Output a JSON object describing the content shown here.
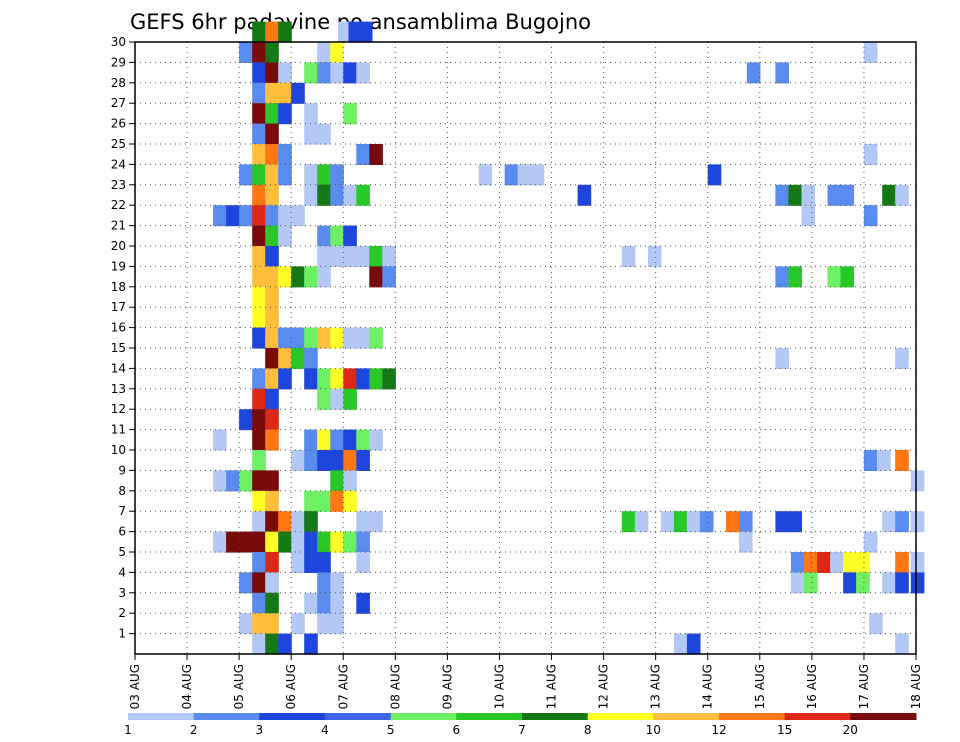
{
  "chart_data": {
    "type": "heatmap",
    "title": "GEFS 6hr padavine po ansamblima Bugojno",
    "xlabel": "",
    "ylabel": "",
    "x_ticks": [
      "03 AUG",
      "04 AUG",
      "05 AUG",
      "06 AUG",
      "07 AUG",
      "08 AUG",
      "09 AUG",
      "10 AUG",
      "11 AUG",
      "12 AUG",
      "13 AUG",
      "14 AUG",
      "15 AUG",
      "16 AUG",
      "17 AUG",
      "18 AUG"
    ],
    "y_ticks": [
      1,
      2,
      3,
      4,
      5,
      6,
      7,
      8,
      9,
      10,
      11,
      12,
      13,
      14,
      15,
      16,
      17,
      18,
      19,
      20,
      21,
      22,
      23,
      24,
      25,
      26,
      27,
      28,
      29,
      30
    ],
    "xlim_days": [
      0,
      15
    ],
    "ylim": [
      0,
      30
    ],
    "grid": "dotted",
    "colorbar": {
      "labels": [
        "1",
        "2",
        "3",
        "4",
        "5",
        "6",
        "7",
        "8",
        "10",
        "12",
        "15",
        "20"
      ],
      "colors": [
        "#b4c8f5",
        "#5a8cf0",
        "#1e46dc",
        "#3c64e6",
        "#6ef064",
        "#28c828",
        "#147814",
        "#ffff28",
        "#ffbe3c",
        "#ff7814",
        "#dc2814",
        "#780a0a"
      ]
    },
    "values_note": "6-hourly precipitation per ensemble member (mm), binned by color class",
    "cells": [
      [
        2.25,
        30,
        7
      ],
      [
        2.5,
        30,
        10
      ],
      [
        2.75,
        30,
        7
      ],
      [
        3.9,
        30,
        1
      ],
      [
        4.1,
        30,
        3
      ],
      [
        4.3,
        30,
        3
      ],
      [
        2.0,
        29,
        2
      ],
      [
        2.25,
        29,
        12
      ],
      [
        2.5,
        29,
        7
      ],
      [
        3.5,
        29,
        1
      ],
      [
        3.75,
        29,
        8
      ],
      [
        14.0,
        29,
        1
      ],
      [
        2.25,
        28,
        3
      ],
      [
        2.5,
        28,
        12
      ],
      [
        2.75,
        28,
        1
      ],
      [
        3.25,
        28,
        5
      ],
      [
        3.5,
        28,
        2
      ],
      [
        3.75,
        28,
        1
      ],
      [
        4.0,
        28,
        3
      ],
      [
        4.25,
        28,
        1
      ],
      [
        11.75,
        28,
        2
      ],
      [
        12.3,
        28,
        2
      ],
      [
        2.25,
        27,
        2
      ],
      [
        2.5,
        27,
        9
      ],
      [
        2.75,
        27,
        9
      ],
      [
        3.0,
        27,
        3
      ],
      [
        2.25,
        26,
        12
      ],
      [
        2.5,
        26,
        6
      ],
      [
        2.75,
        26,
        3
      ],
      [
        3.25,
        26,
        1
      ],
      [
        4.0,
        26,
        5
      ],
      [
        2.25,
        25,
        2
      ],
      [
        2.5,
        25,
        12
      ],
      [
        3.25,
        25,
        1
      ],
      [
        3.5,
        25,
        1
      ],
      [
        2.25,
        24,
        9
      ],
      [
        2.5,
        24,
        10
      ],
      [
        2.75,
        24,
        2
      ],
      [
        4.25,
        24,
        2
      ],
      [
        4.5,
        24,
        12
      ],
      [
        14.0,
        24,
        1
      ],
      [
        2.0,
        23,
        2
      ],
      [
        2.25,
        23,
        6
      ],
      [
        2.5,
        23,
        9
      ],
      [
        2.75,
        23,
        2
      ],
      [
        3.25,
        23,
        1
      ],
      [
        3.5,
        23,
        6
      ],
      [
        3.75,
        23,
        2
      ],
      [
        6.6,
        23,
        1
      ],
      [
        7.1,
        23,
        2
      ],
      [
        7.35,
        23,
        1
      ],
      [
        7.6,
        23,
        1
      ],
      [
        11.0,
        23,
        3
      ],
      [
        2.25,
        22,
        10
      ],
      [
        2.5,
        22,
        9
      ],
      [
        3.25,
        22,
        1
      ],
      [
        3.5,
        22,
        7
      ],
      [
        3.75,
        22,
        2
      ],
      [
        4.0,
        22,
        1
      ],
      [
        4.25,
        22,
        6
      ],
      [
        8.5,
        22,
        3
      ],
      [
        12.3,
        22,
        2
      ],
      [
        12.55,
        22,
        7
      ],
      [
        12.8,
        22,
        1
      ],
      [
        13.3,
        22,
        2
      ],
      [
        13.55,
        22,
        2
      ],
      [
        14.35,
        22,
        7
      ],
      [
        14.6,
        22,
        1
      ],
      [
        1.5,
        21,
        2
      ],
      [
        1.75,
        21,
        3
      ],
      [
        2.0,
        21,
        2
      ],
      [
        2.25,
        21,
        11
      ],
      [
        2.5,
        21,
        2
      ],
      [
        2.75,
        21,
        1
      ],
      [
        3.0,
        21,
        1
      ],
      [
        12.8,
        21,
        1
      ],
      [
        14.0,
        21,
        2
      ],
      [
        2.25,
        20,
        12
      ],
      [
        2.5,
        20,
        6
      ],
      [
        2.75,
        20,
        1
      ],
      [
        3.5,
        20,
        2
      ],
      [
        3.75,
        20,
        5
      ],
      [
        4.0,
        20,
        3
      ],
      [
        2.25,
        19,
        9
      ],
      [
        2.5,
        19,
        3
      ],
      [
        3.5,
        19,
        1
      ],
      [
        3.75,
        19,
        1
      ],
      [
        4.0,
        19,
        1
      ],
      [
        4.25,
        19,
        1
      ],
      [
        4.5,
        19,
        6
      ],
      [
        4.75,
        19,
        1
      ],
      [
        9.35,
        19,
        1
      ],
      [
        9.85,
        19,
        1
      ],
      [
        2.25,
        18,
        9
      ],
      [
        2.5,
        18,
        9
      ],
      [
        2.75,
        18,
        8
      ],
      [
        3.0,
        18,
        7
      ],
      [
        3.25,
        18,
        5
      ],
      [
        3.5,
        18,
        1
      ],
      [
        4.5,
        18,
        12
      ],
      [
        4.75,
        18,
        2
      ],
      [
        12.3,
        18,
        2
      ],
      [
        12.55,
        18,
        6
      ],
      [
        13.3,
        18,
        5
      ],
      [
        13.55,
        18,
        6
      ],
      [
        2.25,
        17,
        8
      ],
      [
        2.5,
        17,
        9
      ],
      [
        2.25,
        16,
        8
      ],
      [
        2.5,
        16,
        9
      ],
      [
        2.25,
        15,
        3
      ],
      [
        2.5,
        15,
        9
      ],
      [
        2.75,
        15,
        2
      ],
      [
        3.0,
        15,
        2
      ],
      [
        3.25,
        15,
        5
      ],
      [
        3.5,
        15,
        9
      ],
      [
        3.75,
        15,
        8
      ],
      [
        4.0,
        15,
        1
      ],
      [
        4.25,
        15,
        1
      ],
      [
        4.5,
        15,
        5
      ],
      [
        2.5,
        14,
        12
      ],
      [
        2.75,
        14,
        9
      ],
      [
        3.0,
        14,
        6
      ],
      [
        3.25,
        14,
        2
      ],
      [
        12.3,
        14,
        1
      ],
      [
        14.6,
        14,
        1
      ],
      [
        2.25,
        13,
        2
      ],
      [
        2.5,
        13,
        9
      ],
      [
        2.75,
        13,
        3
      ],
      [
        3.25,
        13,
        3
      ],
      [
        3.5,
        13,
        5
      ],
      [
        3.75,
        13,
        8
      ],
      [
        4.0,
        13,
        11
      ],
      [
        4.25,
        13,
        3
      ],
      [
        4.5,
        13,
        6
      ],
      [
        4.75,
        13,
        7
      ],
      [
        2.25,
        12,
        11
      ],
      [
        2.5,
        12,
        3
      ],
      [
        3.5,
        12,
        5
      ],
      [
        3.75,
        12,
        1
      ],
      [
        4.0,
        12,
        6
      ],
      [
        2.0,
        11,
        3
      ],
      [
        2.25,
        11,
        12
      ],
      [
        2.5,
        11,
        11
      ],
      [
        1.5,
        10,
        1
      ],
      [
        2.25,
        10,
        12
      ],
      [
        2.5,
        10,
        10
      ],
      [
        3.25,
        10,
        2
      ],
      [
        3.5,
        10,
        8
      ],
      [
        3.75,
        10,
        2
      ],
      [
        4.0,
        10,
        3
      ],
      [
        4.25,
        10,
        5
      ],
      [
        4.5,
        10,
        1
      ],
      [
        2.25,
        9,
        5
      ],
      [
        3.0,
        9,
        1
      ],
      [
        3.25,
        9,
        2
      ],
      [
        3.5,
        9,
        3
      ],
      [
        3.75,
        9,
        3
      ],
      [
        4.0,
        9,
        10
      ],
      [
        4.25,
        9,
        3
      ],
      [
        14.0,
        9,
        2
      ],
      [
        14.25,
        9,
        1
      ],
      [
        14.6,
        9,
        10
      ],
      [
        1.5,
        8,
        1
      ],
      [
        1.75,
        8,
        2
      ],
      [
        2.0,
        8,
        5
      ],
      [
        2.25,
        8,
        12
      ],
      [
        2.5,
        8,
        12
      ],
      [
        3.75,
        8,
        6
      ],
      [
        4.0,
        8,
        1
      ],
      [
        14.9,
        8,
        1
      ],
      [
        2.25,
        7,
        8
      ],
      [
        2.5,
        7,
        9
      ],
      [
        3.25,
        7,
        5
      ],
      [
        3.5,
        7,
        5
      ],
      [
        3.75,
        7,
        10
      ],
      [
        4.0,
        7,
        8
      ],
      [
        2.25,
        6,
        1
      ],
      [
        2.5,
        6,
        12
      ],
      [
        2.75,
        6,
        10
      ],
      [
        3.0,
        6,
        1
      ],
      [
        3.25,
        6,
        7
      ],
      [
        4.25,
        6,
        1
      ],
      [
        4.5,
        6,
        1
      ],
      [
        9.35,
        6,
        6
      ],
      [
        9.6,
        6,
        1
      ],
      [
        10.1,
        6,
        1
      ],
      [
        10.35,
        6,
        6
      ],
      [
        10.6,
        6,
        1
      ],
      [
        10.85,
        6,
        2
      ],
      [
        11.35,
        6,
        10
      ],
      [
        11.6,
        6,
        2
      ],
      [
        12.3,
        6,
        3
      ],
      [
        12.55,
        6,
        3
      ],
      [
        14.35,
        6,
        1
      ],
      [
        14.6,
        6,
        2
      ],
      [
        14.9,
        6,
        1
      ],
      [
        1.5,
        5,
        1
      ],
      [
        1.75,
        5,
        12
      ],
      [
        2.0,
        5,
        12
      ],
      [
        2.25,
        5,
        12
      ],
      [
        2.5,
        5,
        8
      ],
      [
        2.75,
        5,
        7
      ],
      [
        3.0,
        5,
        1
      ],
      [
        3.25,
        5,
        3
      ],
      [
        3.5,
        5,
        6
      ],
      [
        3.75,
        5,
        8
      ],
      [
        4.0,
        5,
        5
      ],
      [
        4.25,
        5,
        2
      ],
      [
        11.6,
        5,
        1
      ],
      [
        14.0,
        5,
        1
      ],
      [
        2.25,
        4,
        2
      ],
      [
        2.5,
        4,
        11
      ],
      [
        3.0,
        4,
        1
      ],
      [
        3.25,
        4,
        3
      ],
      [
        3.5,
        4,
        3
      ],
      [
        4.25,
        4,
        1
      ],
      [
        12.6,
        4,
        2
      ],
      [
        12.85,
        4,
        10
      ],
      [
        13.1,
        4,
        11
      ],
      [
        13.35,
        4,
        1
      ],
      [
        13.6,
        4,
        8
      ],
      [
        13.85,
        4,
        8
      ],
      [
        14.6,
        4,
        10
      ],
      [
        14.9,
        4,
        1
      ],
      [
        2.0,
        3,
        2
      ],
      [
        2.25,
        3,
        12
      ],
      [
        2.5,
        3,
        1
      ],
      [
        3.5,
        3,
        2
      ],
      [
        3.75,
        3,
        1
      ],
      [
        12.6,
        3,
        1
      ],
      [
        12.85,
        3,
        5
      ],
      [
        13.6,
        3,
        3
      ],
      [
        13.85,
        3,
        5
      ],
      [
        14.35,
        3,
        1
      ],
      [
        14.6,
        3,
        3
      ],
      [
        14.9,
        3,
        3
      ],
      [
        2.25,
        2,
        2
      ],
      [
        2.5,
        2,
        7
      ],
      [
        3.25,
        2,
        1
      ],
      [
        3.5,
        2,
        2
      ],
      [
        3.75,
        2,
        1
      ],
      [
        4.25,
        2,
        3
      ],
      [
        2.0,
        1,
        1
      ],
      [
        2.25,
        1,
        9
      ],
      [
        2.5,
        1,
        9
      ],
      [
        3.0,
        1,
        1
      ],
      [
        3.5,
        1,
        1
      ],
      [
        3.75,
        1,
        1
      ],
      [
        14.1,
        1,
        1
      ],
      [
        2.25,
        0,
        1
      ],
      [
        2.5,
        0,
        7
      ],
      [
        2.75,
        0,
        3
      ],
      [
        3.25,
        0,
        3
      ],
      [
        10.35,
        0,
        1
      ],
      [
        10.6,
        0,
        3
      ],
      [
        14.6,
        0,
        1
      ]
    ]
  }
}
